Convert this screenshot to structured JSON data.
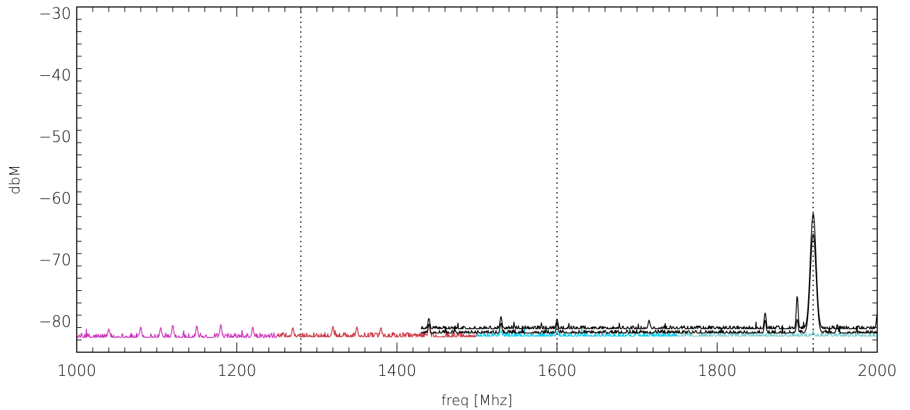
{
  "chart_data": {
    "type": "line",
    "title": "",
    "xlabel": "freq [Mhz]",
    "ylabel": "dbM",
    "xlim": [
      1000,
      2000
    ],
    "ylim": [
      -85,
      -29
    ],
    "x_ticks": [
      1000,
      1200,
      1400,
      1600,
      1800,
      2000
    ],
    "x_tick_labels": [
      "1000",
      "1200",
      "1400",
      "1600",
      "1800",
      "2000"
    ],
    "y_ticks": [
      -80,
      -70,
      -60,
      -50,
      -40,
      -30
    ],
    "y_tick_labels": [
      "−80",
      "−70",
      "−60",
      "−50",
      "−40",
      "−30"
    ],
    "vertical_reference_lines": [
      1280,
      1600,
      1920
    ],
    "grid": false,
    "series": [
      {
        "color": "#cc33bb",
        "x_range": [
          1000,
          1250
        ],
        "baseline": -82.6,
        "noise": 0.7,
        "spikes": [
          [
            1040,
            -81.2
          ],
          [
            1080,
            -80.9
          ],
          [
            1105,
            -81.0
          ],
          [
            1120,
            -80.6
          ],
          [
            1150,
            -80.7
          ],
          [
            1180,
            -80.5
          ],
          [
            1220,
            -80.9
          ]
        ]
      },
      {
        "color": "#cc3344",
        "x_range": [
          1250,
          1500
        ],
        "baseline": -82.5,
        "noise": 0.7,
        "spikes": [
          [
            1270,
            -81.0
          ],
          [
            1320,
            -80.8
          ],
          [
            1350,
            -80.9
          ],
          [
            1380,
            -81.0
          ],
          [
            1440,
            -80.4
          ]
        ]
      },
      {
        "color": "#00ccee",
        "x_range": [
          1500,
          1750
        ],
        "baseline": -82.4,
        "noise": 0.6,
        "spikes": [
          [
            1530,
            -81.5
          ],
          [
            1600,
            -81.6
          ],
          [
            1700,
            -81.7
          ]
        ]
      },
      {
        "color": "#77cccc",
        "x_range": [
          1750,
          2000
        ],
        "baseline": -82.4,
        "noise": 0.6,
        "spikes": [
          [
            1920,
            -81.5
          ]
        ]
      },
      {
        "color": "#000000",
        "x_range": [
          1430,
          2000
        ],
        "baseline": -81.2,
        "noise": 0.5,
        "spikes": [
          [
            1440,
            -79.5
          ],
          [
            1530,
            -79.2
          ],
          [
            1600,
            -79.6
          ],
          [
            1715,
            -79.8
          ],
          [
            1860,
            -78.6
          ],
          [
            1900,
            -75.8
          ],
          [
            1920,
            -62.5
          ],
          [
            2000,
            -78.8
          ]
        ]
      },
      {
        "color": "#000000",
        "x_range": [
          1430,
          2000
        ],
        "baseline": -81.9,
        "noise": 0.5,
        "spikes": [
          [
            1440,
            -80.4
          ],
          [
            1530,
            -80.3
          ],
          [
            1600,
            -80.2
          ],
          [
            1860,
            -79.8
          ],
          [
            1900,
            -79.6
          ],
          [
            1920,
            -65.8
          ],
          [
            1950,
            -80.5
          ]
        ]
      }
    ]
  }
}
